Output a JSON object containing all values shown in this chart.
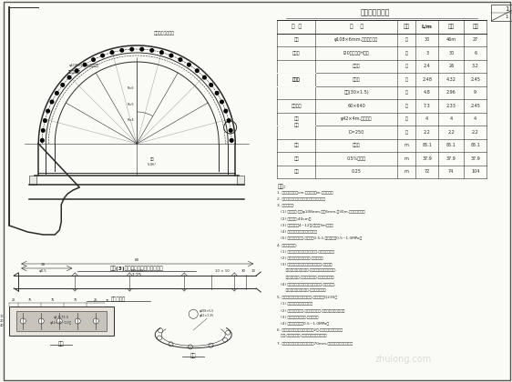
{
  "bg_color": "#f7f7f2",
  "line_color": "#2a2a2a",
  "table_title": "主要工程数量表",
  "table_rows": [
    [
      "名  称",
      "规    格",
      "单位",
      "L/m",
      "根数",
      "备注"
    ],
    [
      "管棚",
      "φ108×6mm,热轧无缝钢管",
      "根",
      "30",
      "46m",
      "27"
    ],
    [
      "钢拱架",
      "I20工字钢或H型钢",
      "榀",
      "3",
      "30",
      "6"
    ],
    [
      "",
      "止浆板",
      "个",
      "2.4",
      "26",
      "3.2"
    ],
    [
      "连接筋",
      "圆钢筋",
      "个",
      "2.48",
      "4.32",
      "2.45"
    ],
    [
      "",
      "锁定(30×1.5)",
      "个",
      "4.8",
      "2.96",
      "9"
    ],
    [
      "止浆环筋",
      "60×640",
      "个",
      "7.3",
      "2.33",
      "2.45"
    ],
    [
      "止浆",
      "φ42×4m,无缝钢管",
      "根",
      "4",
      "4",
      "4"
    ],
    [
      "",
      "D=250",
      "个",
      "2.2",
      "2.2",
      "2.2"
    ],
    [
      "注浆",
      "注浆量",
      "m",
      "85.1",
      "85.1",
      "85.1"
    ],
    [
      "坡度",
      "0.5%坡率管",
      "m",
      "37.9",
      "37.9",
      "37.9"
    ],
    [
      "台阶",
      "0.25",
      "m",
      "72",
      "74",
      "104"
    ]
  ],
  "notes": [
    "说明:",
    "1. 本图尺寸单位为cm,高程单位为m,纵距上方。",
    "2. 本图适用于软弱地段采用长管棚支护方案。",
    "3. 长管棚参数:",
    "   (1) 钢管规格:外径φ108mm,壁厚6mm,长30m,热轧无缝钢管。",
    "   (2) 环向间距:40cm。",
    "   (3) 钢管每根由4~12节/节长度3m组成。",
    "   (4) 钢管每节之间采用丝扣连接。",
    "   (5) 钢管内注水泥浆,水灰比为0.5:1,注浆压力为0.5~1.0MPa。",
    "4. 施工注意事项:",
    "   (1) 施工前详细调查工程地质情况,做好充分准备。",
    "   (2) 开挖时保持工作面稳定,防止塌方。",
    "   (3) 钢管施打时应严格控制仰角和方向,钻孔精度",
    "       控制在设计要求范围内,施工中详细记录钻进情况,",
    "       如遇异常情况,应及时分析原因,采取相应措施。",
    "   (4) 注浆压力和注浆量应满足设计要求,注浆结束后,",
    "       用膨胀水泥封堵注浆孔,管口焊接密封。",
    "5. 所有钢管均采用热轧无缝钢管,钢管材质为Q235。",
    "   (1) 每段管棚均应进行注浆。",
    "   (2) 管棚施打完毕后,对管棚进行检验,检验合格后方可开挖。",
    "   (3) 注浆材料为水泥浆,配合比等。",
    "   (4) 注浆压力控制在0.5~1.0MPa。",
    "6. 施工中如发现注浆量超过设计值2倍,且注浆压力未达到设计",
    "   终压,则应停止注浆,查明原因后再继续施工。",
    "7. 所有钢材连接处焊缝质量不低于70mm,钢管端头采用钢板封堵。"
  ],
  "watermark": "zhulong.com"
}
